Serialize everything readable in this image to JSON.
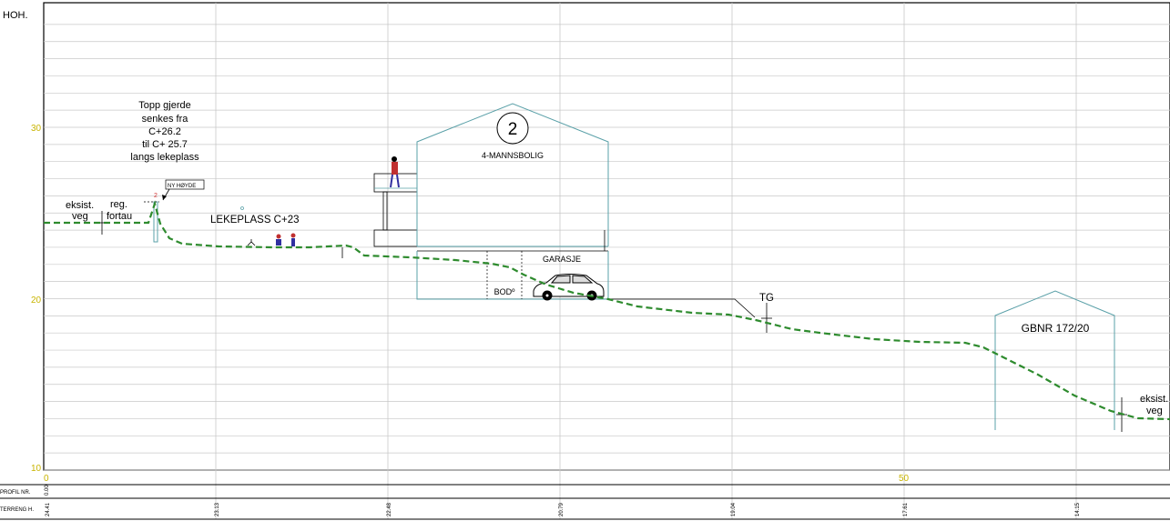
{
  "axis": {
    "ylabel": "HOH.",
    "yticks": [
      "30",
      "20",
      "10"
    ],
    "xticks": [
      "0",
      "50"
    ]
  },
  "table": {
    "row1_label": "PROFIL NR.",
    "row2_label": "TERRENG H.",
    "profile_start": "0.00",
    "terrain_values": [
      "24.41",
      "23.13",
      "22.48",
      "20.79",
      "19.04",
      "17.61",
      "14.15"
    ]
  },
  "labels": {
    "existing_road_left_1": "eksist.",
    "existing_road_left_2": "veg",
    "sidewalk_1": "reg.",
    "sidewalk_2": "fortau",
    "fence_note": [
      "Topp gjerde",
      "senkes fra",
      "C+26.2",
      "til C+ 25.7",
      "langs lekeplass"
    ],
    "new_height": "NY HØYDE",
    "playground": "LEKEPLASS C+23",
    "building_number": "2",
    "building_type": "4-MANNSBOLIG",
    "garage": "GARASJE",
    "storage": "BODº",
    "tg": "TG",
    "gbnr": "GBNR 172/20",
    "existing_road_right_1": "eksist.",
    "existing_road_right_2": "veg"
  },
  "colors": {
    "terrain": "#2e8b2e",
    "building": "#5aa0a8",
    "axis_numbers": "#c8b400",
    "grid": "#c8c8c8"
  }
}
